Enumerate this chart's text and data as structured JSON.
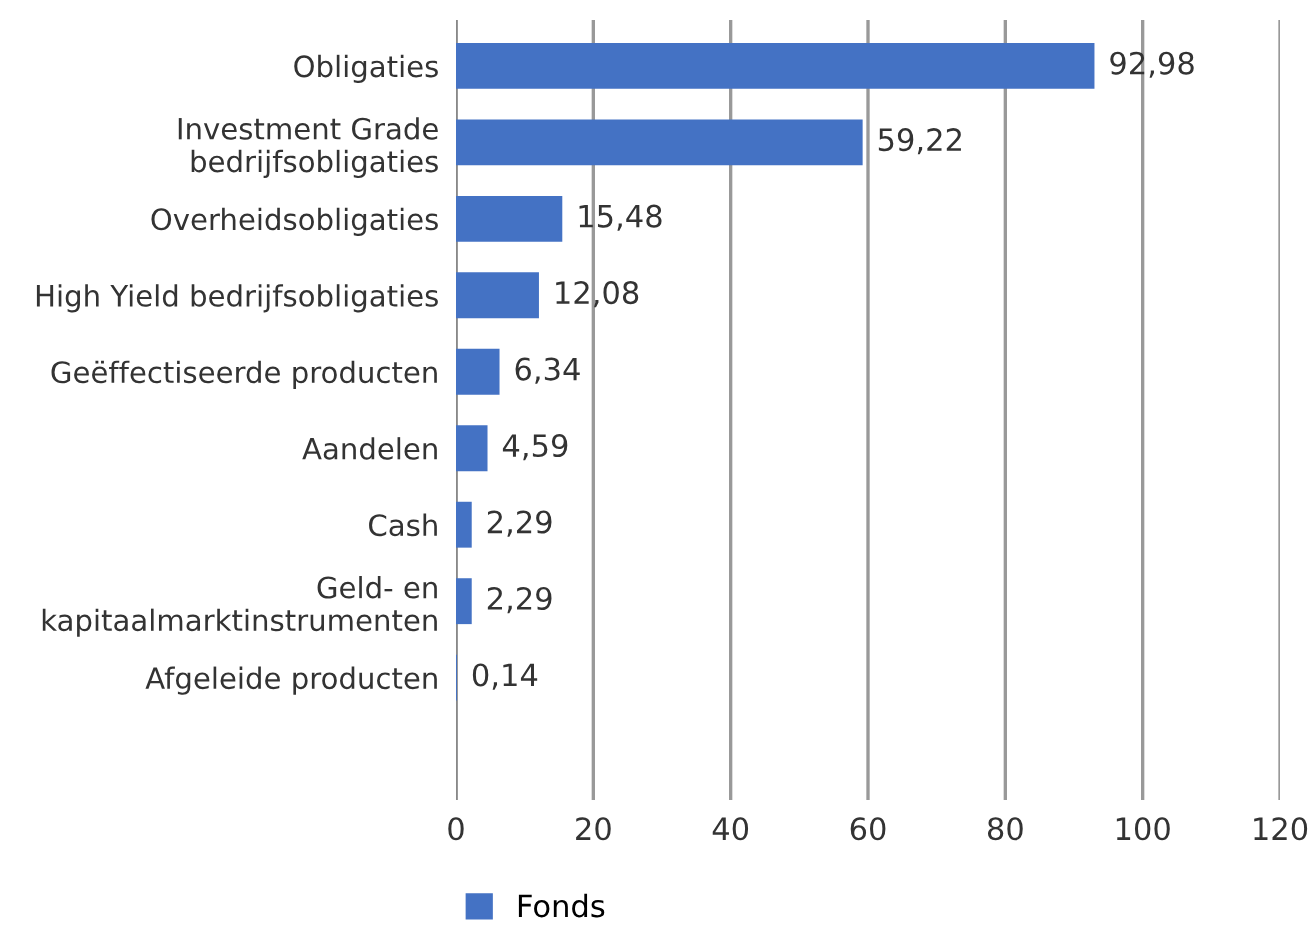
{
  "chart_data": {
    "type": "bar",
    "orientation": "horizontal",
    "categories": [
      "Obligaties",
      "Investment Grade\nbedrijfsobligaties",
      "Overheidsobligaties",
      "High Yield bedrijfsobligaties",
      "Geëffectiseerde producten",
      "Aandelen",
      "Cash",
      "Geld- en\nkapitaalmarktinstrumenten",
      "Afgeleide producten"
    ],
    "series": [
      {
        "name": "Fonds",
        "color": "#4472c4",
        "values": [
          92.98,
          59.22,
          15.48,
          12.08,
          6.34,
          4.59,
          2.29,
          2.29,
          0.14
        ],
        "value_labels": [
          "92,98",
          "59,22",
          "15,48",
          "12,08",
          "6,34",
          "4,59",
          "2,29",
          "2,29",
          "0,14"
        ]
      }
    ],
    "xlim": [
      0,
      120
    ],
    "xticks": [
      0,
      20,
      40,
      60,
      80,
      100,
      120
    ],
    "grid": "x",
    "legend": "bottom"
  }
}
